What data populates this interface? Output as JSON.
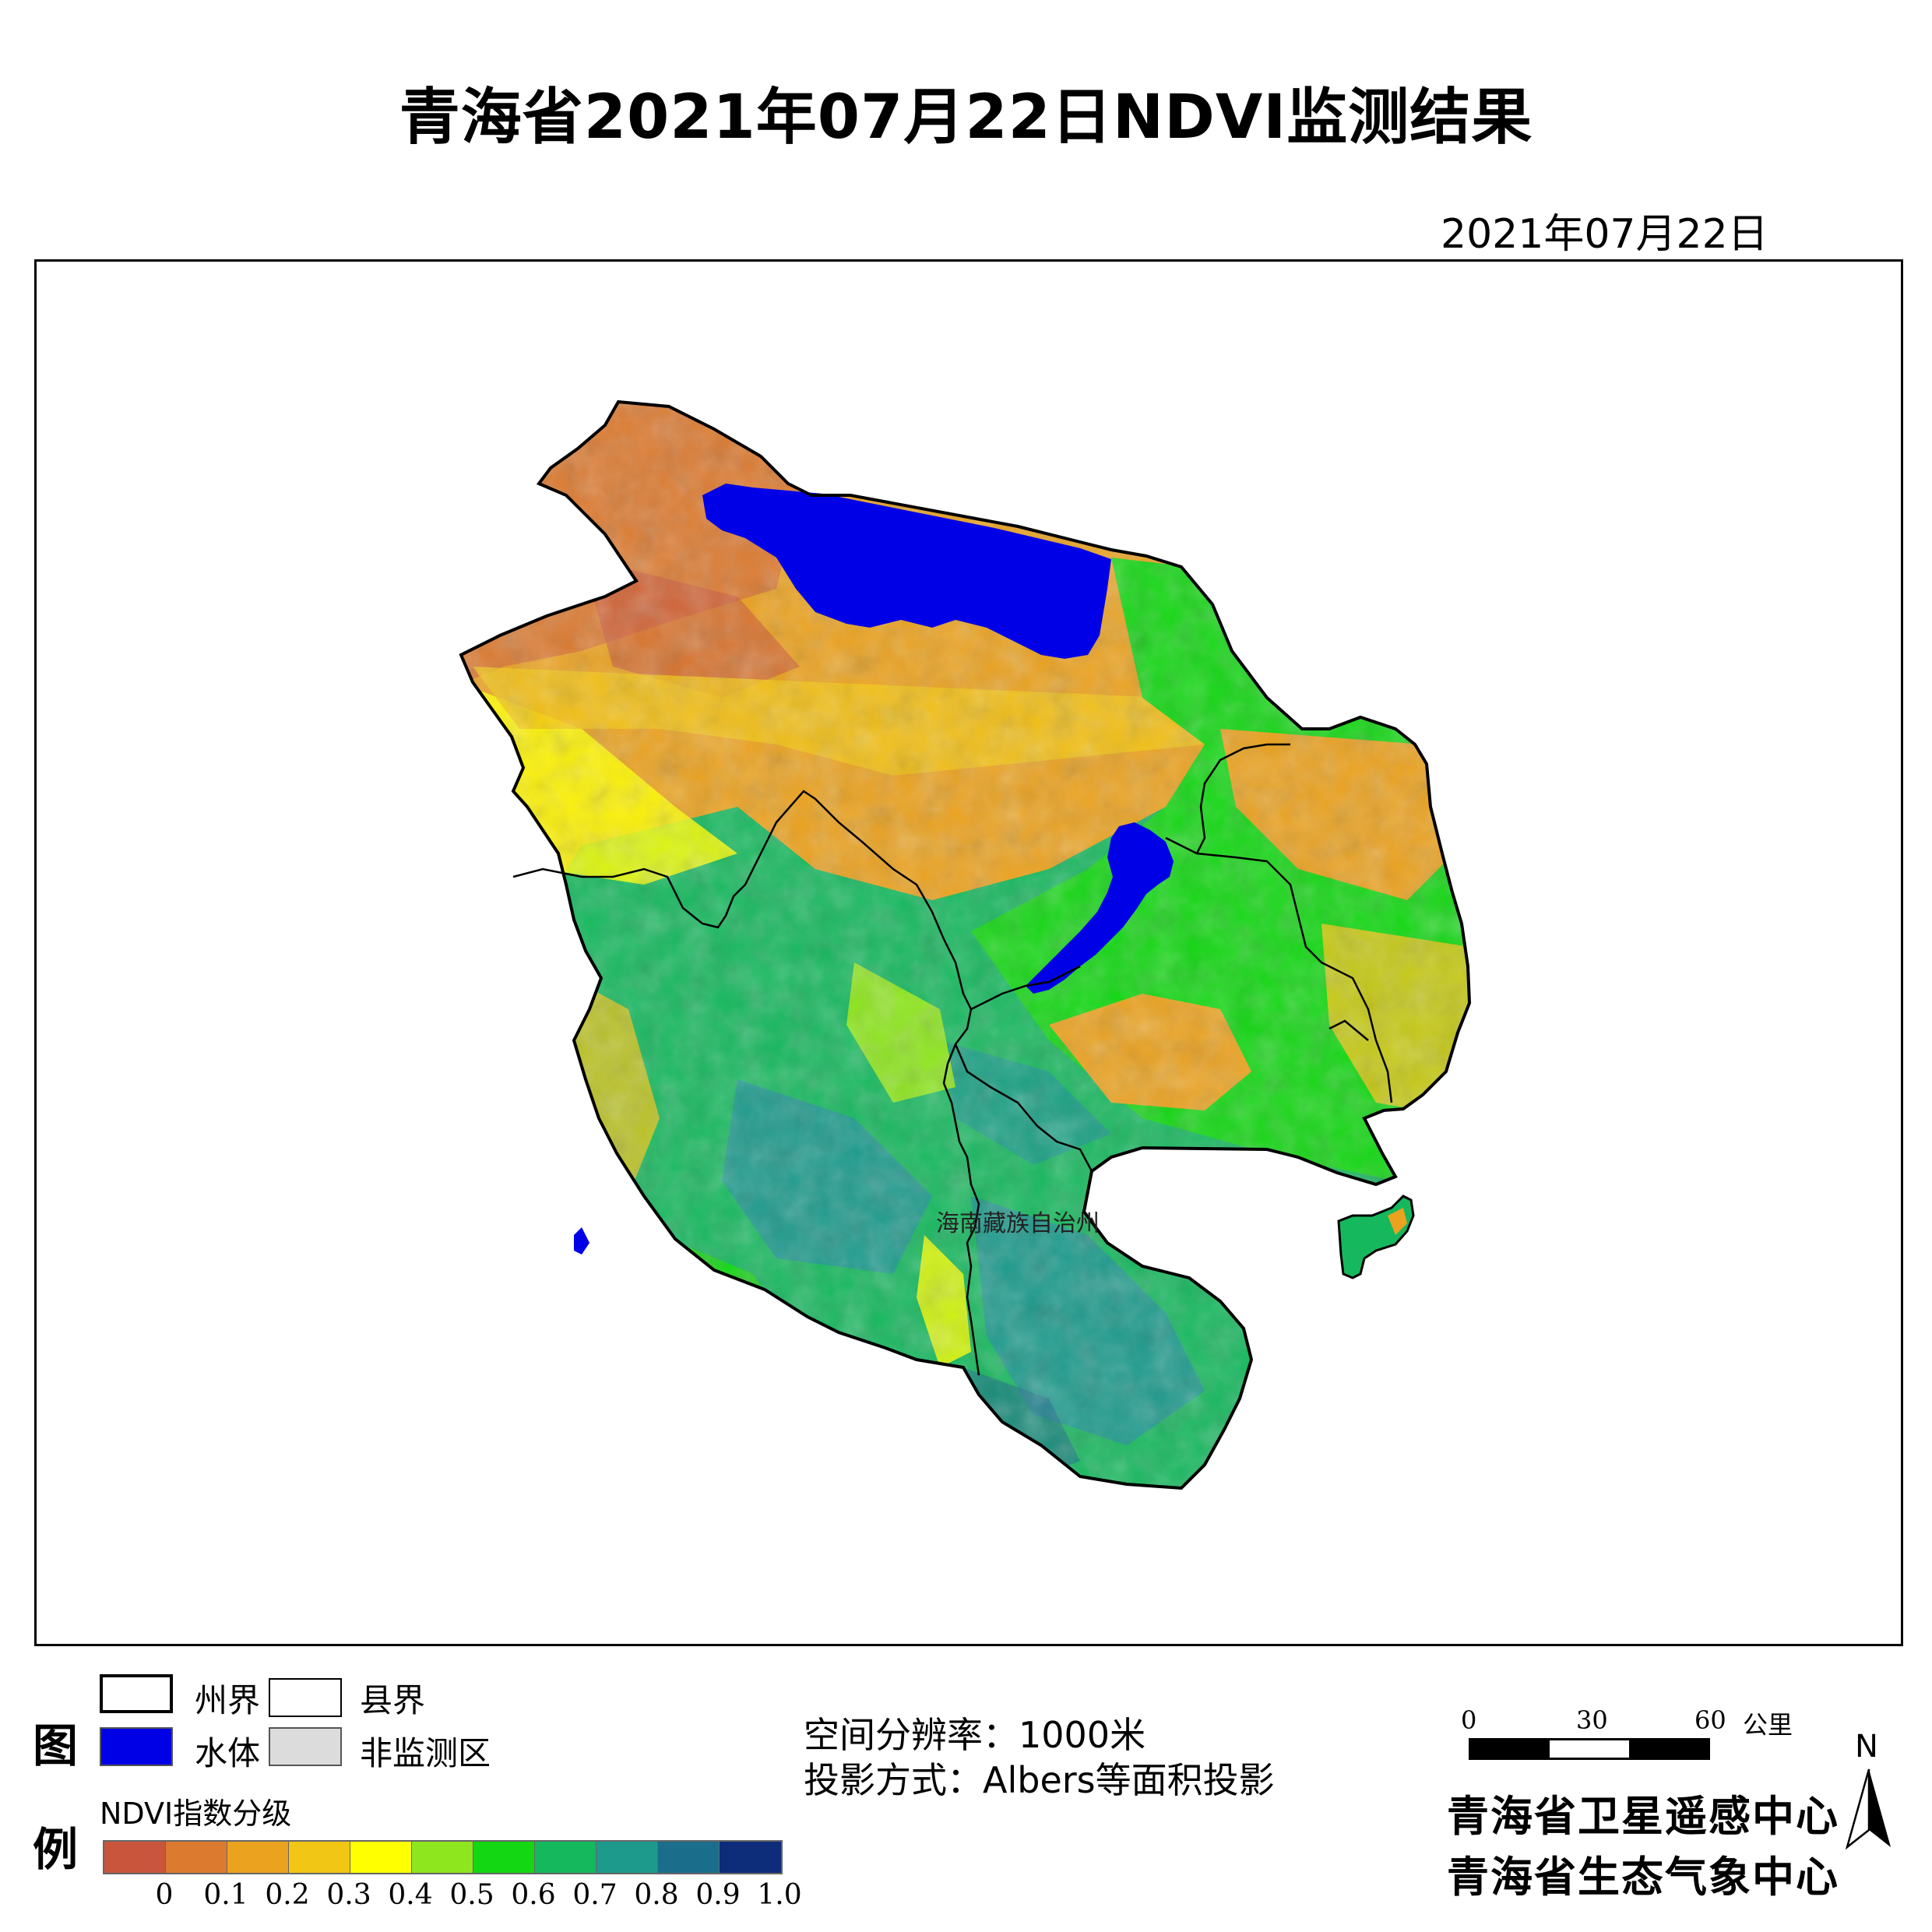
{
  "title": "青海省2021年07月22日NDVI监测结果",
  "date": "2021年07月22日",
  "map": {
    "region_label": "海南藏族自治州",
    "colors": {
      "water": "#0000e6",
      "prefecture_border": "#000000",
      "county_border": "#000000"
    }
  },
  "legend": {
    "title_line1": "图",
    "title_line2": "例",
    "items": {
      "prefecture_border": "州界",
      "county_border": "县界",
      "water": "水体",
      "non_monitoring": "非监测区"
    },
    "ndvi_title": "NDVI指数分级",
    "ramp_colors": [
      "#c9553c",
      "#dc7a30",
      "#eba21f",
      "#f2c614",
      "#ffff00",
      "#8ee61e",
      "#14d714",
      "#16b85e",
      "#1d9a8c",
      "#1b6d8c",
      "#0d2c7a"
    ],
    "ticks": [
      "0",
      "0.1",
      "0.2",
      "0.3",
      "0.4",
      "0.5",
      "0.6",
      "0.7",
      "0.8",
      "0.9",
      "1.0"
    ]
  },
  "info": {
    "resolution": "空间分辨率：1000米",
    "projection": "投影方式：Albers等面积投影"
  },
  "scale": {
    "ticks": [
      "0",
      "30",
      "60"
    ],
    "unit": "公里"
  },
  "orgs": [
    "青海省卫星遥感中心",
    "青海省生态气象中心"
  ],
  "north_label": "N"
}
